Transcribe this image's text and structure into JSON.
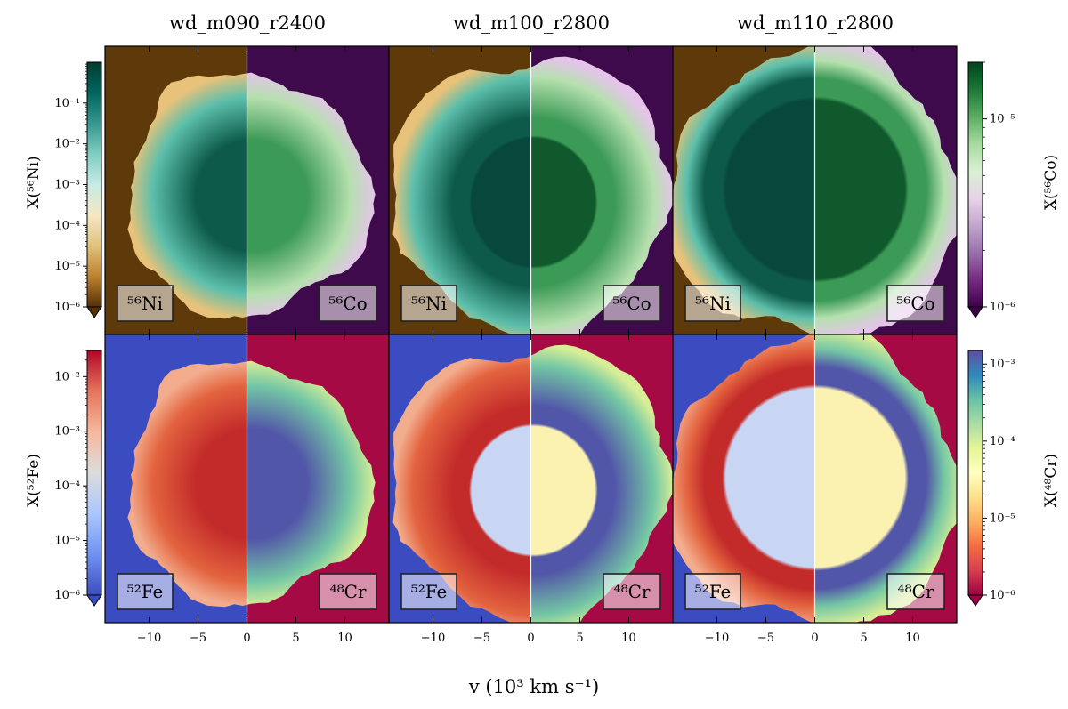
{
  "chart_data": {
    "type": "heatmap",
    "xlabel": "v (10³ km s⁻¹)",
    "columns": [
      "wd_m090_r2400",
      "wd_m100_r2800",
      "wd_m110_r2800"
    ],
    "x_ticks": [
      -10,
      -5,
      0,
      5,
      10
    ],
    "x_range": [
      -14.5,
      14.5
    ],
    "colorbars": {
      "ni56": {
        "label": "X(⁵⁶Ni)",
        "scale": "log",
        "range": [
          1e-06,
          1
        ],
        "ticks": [
          "10⁻⁶",
          "10⁻⁵",
          "10⁻⁴",
          "10⁻³",
          "10⁻²",
          "10⁻¹"
        ],
        "colormap": "BrBG"
      },
      "co56": {
        "label": "X(⁵⁶Co)",
        "scale": "log",
        "range": [
          1e-06,
          2e-05
        ],
        "ticks": [
          "10⁻⁶",
          "10⁻⁵"
        ],
        "colormap": "PRGn"
      },
      "fe52": {
        "label": "X(⁵²Fe)",
        "scale": "log",
        "range": [
          1e-06,
          0.03
        ],
        "ticks": [
          "10⁻⁶",
          "10⁻⁵",
          "10⁻⁴",
          "10⁻³",
          "10⁻²"
        ],
        "colormap": "coolwarm"
      },
      "cr48": {
        "label": "X(⁴⁸Cr)",
        "scale": "log",
        "range": [
          1e-06,
          0.0015
        ],
        "ticks": [
          "10⁻⁶",
          "10⁻⁵",
          "10⁻⁴",
          "10⁻³"
        ],
        "colormap": "Spectral"
      }
    },
    "rows": [
      {
        "left_label": "⁵⁶Ni",
        "right_label": "⁵⁶Co",
        "left_colors": {
          "low": "#5e3a0b",
          "edge": "#e8c27a",
          "mid": "#5cbfab",
          "high": "#0d5a4a",
          "peak": "#08483c"
        },
        "right_colors": {
          "low": "#3f0a4b",
          "edge": "#e4c4e9",
          "mid": "#b5e0ae",
          "high": "#3b9a55",
          "peak": "#10592d"
        }
      },
      {
        "left_label": "⁵²Fe",
        "right_label": "⁴⁸Cr",
        "left_colors": {
          "low": "#3b4cc0",
          "edge": "#f2ad8e",
          "mid": "#e3633f",
          "high": "#c32b2a",
          "peak": "#c9d6f3"
        },
        "right_colors": {
          "low": "#a50a45",
          "edge": "#d8ee96",
          "mid": "#74c7a5",
          "high": "#5256a8",
          "peak": "#fbf2b2"
        }
      }
    ],
    "panels": [
      {
        "model": "wd_m090_r2400",
        "row": 0,
        "radius": 12.4,
        "inner_radius": 0,
        "seed": 3
      },
      {
        "model": "wd_m100_r2800",
        "row": 0,
        "radius": 14.2,
        "inner_radius": 6.5,
        "seed": 7
      },
      {
        "model": "wd_m110_r2800",
        "row": 0,
        "radius": 14.8,
        "inner_radius": 9.2,
        "seed": 11
      },
      {
        "model": "wd_m090_r2400",
        "row": 1,
        "radius": 12.4,
        "inner_radius": 0,
        "seed": 3
      },
      {
        "model": "wd_m100_r2800",
        "row": 1,
        "radius": 14.2,
        "inner_radius": 6.5,
        "seed": 7
      },
      {
        "model": "wd_m110_r2800",
        "row": 1,
        "radius": 14.8,
        "inner_radius": 9.2,
        "seed": 11
      }
    ]
  }
}
